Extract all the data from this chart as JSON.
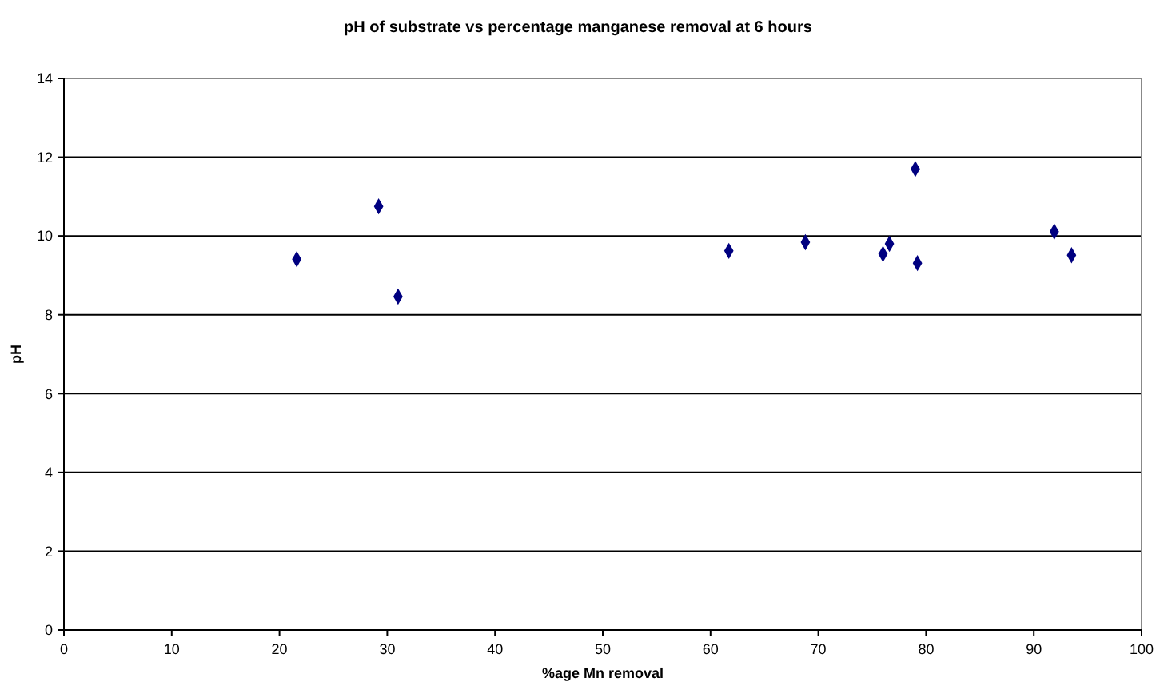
{
  "chart_data": {
    "type": "scatter",
    "title": "pH of substrate vs percentage manganese removal at 6 hours",
    "xlabel": "%age Mn removal",
    "ylabel": "pH",
    "x": [
      21.6,
      29.2,
      31.0,
      61.7,
      68.8,
      76.0,
      76.6,
      79.0,
      79.2,
      91.9,
      93.5
    ],
    "values": [
      9.41,
      10.75,
      8.46,
      9.62,
      9.84,
      9.54,
      9.8,
      11.7,
      9.31,
      10.11,
      9.51
    ],
    "color": "#000080",
    "marker": "diamond",
    "grid": "y",
    "xlim": [
      0,
      100
    ],
    "xticks": [
      0,
      10,
      20,
      30,
      40,
      50,
      60,
      70,
      80,
      90,
      100
    ],
    "ylim": [
      0,
      14
    ],
    "yticks": [
      0,
      2,
      4,
      6,
      8,
      10,
      12,
      14
    ]
  }
}
